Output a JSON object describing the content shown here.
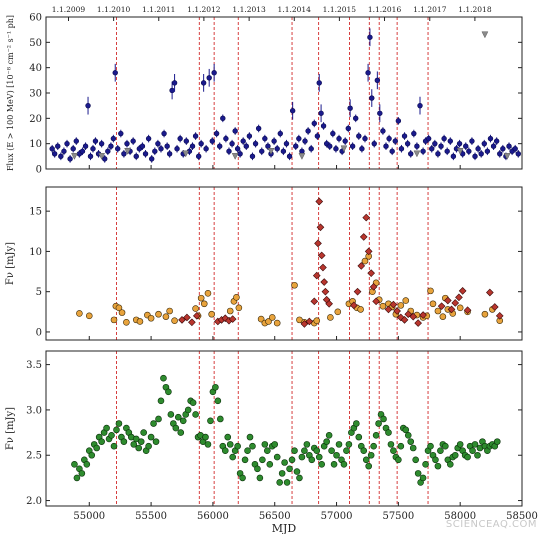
{
  "chart_data": [
    {
      "id": "flux",
      "type": "scatter",
      "ylabel": "Flux (E > 100 MeV) [10⁻⁸ cm⁻² s⁻¹ ph]",
      "xlabel": "",
      "xlim": [
        54650,
        58500
      ],
      "ylim": [
        0,
        60
      ],
      "yticks": [
        0,
        10,
        20,
        30,
        40,
        50,
        60
      ],
      "grid": false,
      "top_axis": {
        "ticks": [
          {
            "mjd": 54832,
            "label": "1.1.2009"
          },
          {
            "mjd": 55197,
            "label": "1.1.2010"
          },
          {
            "mjd": 55562,
            "label": "1.1.2011"
          },
          {
            "mjd": 55927,
            "label": "1.1.2012"
          },
          {
            "mjd": 56293,
            "label": "1.1.2013"
          },
          {
            "mjd": 56658,
            "label": "1.1.2014"
          },
          {
            "mjd": 57023,
            "label": "1.1.2015"
          },
          {
            "mjd": 57388,
            "label": "1.1.2016"
          },
          {
            "mjd": 57754,
            "label": "1.1.2017"
          },
          {
            "mjd": 58119,
            "label": "1.1.2018"
          }
        ]
      },
      "series": [
        {
          "marker": "circle",
          "color": "#1a1a8c",
          "edge": "#0a0a50",
          "x": [
            54700,
            54720,
            54745,
            54770,
            54795,
            54820,
            54845,
            54870,
            54895,
            54920,
            54945,
            54970,
            54990,
            55010,
            55030,
            55050,
            55075,
            55100,
            55125,
            55150,
            55175,
            55195,
            55210,
            55230,
            55255,
            55280,
            55305,
            55330,
            55355,
            55380,
            55405,
            55430,
            55455,
            55480,
            55505,
            55530,
            55555,
            55580,
            55605,
            55630,
            55650,
            55670,
            55690,
            55710,
            55735,
            55760,
            55785,
            55810,
            55835,
            55860,
            55885,
            55905,
            55925,
            55945,
            55970,
            55995,
            56010,
            56030,
            56055,
            56080,
            56105,
            56130,
            56155,
            56180,
            56200,
            56220,
            56245,
            56270,
            56295,
            56320,
            56345,
            56370,
            56395,
            56420,
            56445,
            56470,
            56495,
            56520,
            56545,
            56570,
            56595,
            56620,
            56645,
            56670,
            56695,
            56720,
            56745,
            56770,
            56795,
            56820,
            56845,
            56860,
            56875,
            56895,
            56920,
            56945,
            56970,
            56995,
            57020,
            57045,
            57070,
            57095,
            57110,
            57130,
            57155,
            57180,
            57205,
            57230,
            57255,
            57270,
            57285,
            57305,
            57330,
            57350,
            57375,
            57400,
            57425,
            57450,
            57475,
            57500,
            57525,
            57550,
            57575,
            57600,
            57625,
            57650,
            57675,
            57700,
            57720,
            57745,
            57770,
            57795,
            57820,
            57845,
            57870,
            57895,
            57920,
            57945,
            57970,
            57995,
            58020,
            58045,
            58070,
            58095,
            58120,
            58145,
            58170,
            58195,
            58220,
            58245,
            58270,
            58295,
            58320,
            58345,
            58370,
            58395,
            58420,
            58445,
            58470
          ],
          "y": [
            8,
            6,
            9,
            5,
            7,
            10,
            4,
            8,
            11,
            6,
            7,
            9,
            25,
            5,
            8,
            11,
            6,
            10,
            4,
            7,
            9,
            12,
            38,
            8,
            14,
            6,
            10,
            7,
            11,
            5,
            8,
            9,
            6,
            12,
            4,
            7,
            10,
            8,
            14,
            9,
            6,
            31,
            34,
            8,
            12,
            6,
            11,
            7,
            9,
            13,
            5,
            10,
            34,
            8,
            36,
            11,
            38,
            14,
            9,
            20,
            12,
            7,
            10,
            15,
            8,
            6,
            11,
            9,
            13,
            5,
            10,
            16,
            7,
            12,
            9,
            6,
            11,
            8,
            14,
            7,
            10,
            5,
            23,
            9,
            12,
            7,
            11,
            15,
            8,
            18,
            13,
            34,
            22,
            17,
            10,
            9,
            14,
            8,
            12,
            7,
            11,
            16,
            24,
            9,
            20,
            13,
            8,
            12,
            38,
            52,
            28,
            10,
            35,
            22,
            15,
            9,
            12,
            7,
            11,
            19,
            8,
            13,
            10,
            6,
            14,
            9,
            25,
            7,
            11,
            12,
            8,
            10,
            6,
            9,
            12,
            7,
            11,
            5,
            8,
            10,
            6,
            9,
            7,
            11,
            5,
            8,
            6,
            10,
            7,
            12,
            9,
            11,
            6,
            8,
            5,
            9,
            7,
            8,
            6
          ]
        },
        {
          "marker": "triangle-down",
          "color": "#8a8a8a",
          "edge": "#5a5a5a",
          "x": [
            54880,
            55100,
            55310,
            55780,
            56180,
            56470,
            56720,
            57060,
            57650,
            58000,
            58200,
            58380
          ],
          "y": [
            5,
            5,
            7,
            6,
            5,
            7,
            5,
            8,
            6,
            7,
            53,
            5
          ]
        }
      ]
    },
    {
      "id": "fnu-mm",
      "type": "scatter",
      "ylabel": "Fν [mJy]",
      "xlabel": "",
      "xlim": [
        54650,
        58500
      ],
      "ylim": [
        -1,
        18
      ],
      "yticks": [
        0,
        5,
        10,
        15
      ],
      "grid": false,
      "series": [
        {
          "marker": "circle",
          "color": "#e8a33c",
          "edge": "#3a2a0a",
          "x": [
            54920,
            55000,
            55200,
            55215,
            55240,
            55265,
            55300,
            55380,
            55410,
            55470,
            55500,
            55560,
            55620,
            55650,
            55690,
            55860,
            55880,
            55905,
            55930,
            55960,
            55990,
            56140,
            56170,
            56190,
            56210,
            56390,
            56420,
            56450,
            56480,
            56520,
            56660,
            56700,
            56740,
            56820,
            56840,
            56950,
            57010,
            57100,
            57130,
            57165,
            57195,
            57230,
            57260,
            57290,
            57320,
            57345,
            57375,
            57420,
            57450,
            57480,
            57520,
            57560,
            57600,
            57650,
            57700,
            57730,
            57760,
            57780,
            57820,
            57860,
            57880,
            57900,
            57940,
            58000,
            58060,
            58200,
            58260,
            58320
          ],
          "y": [
            2.3,
            2.0,
            1.5,
            3.2,
            3.0,
            2.4,
            1.2,
            1.5,
            1.3,
            2.1,
            1.7,
            2.2,
            1.9,
            2.6,
            1.4,
            2.9,
            2.0,
            4.2,
            3.5,
            4.8,
            2.2,
            2.6,
            3.8,
            4.3,
            3.0,
            1.6,
            1.1,
            1.3,
            1.8,
            1.1,
            5.8,
            1.5,
            1.2,
            1.1,
            1.4,
            1.8,
            2.5,
            3.5,
            3.8,
            3.0,
            2.8,
            8.8,
            9.4,
            5.0,
            6.1,
            4.0,
            3.2,
            3.5,
            3.1,
            2.2,
            3.3,
            3.9,
            2.6,
            2.1,
            1.8,
            2.0,
            5.1,
            3.5,
            2.6,
            1.9,
            4.2,
            2.8,
            2.3,
            3.0,
            2.5,
            2.2,
            2.8,
            1.4
          ]
        },
        {
          "marker": "diamond",
          "color": "#b8362e",
          "edge": "#3a0a0a",
          "x": [
            55750,
            55790,
            55830,
            55870,
            56040,
            56070,
            56100,
            56130,
            56160,
            56740,
            56780,
            56820,
            56840,
            56850,
            56860,
            56870,
            56880,
            56890,
            56900,
            56910,
            56920,
            56940,
            57140,
            57170,
            57200,
            57220,
            57240,
            57260,
            57280,
            57300,
            57320,
            57420,
            57460,
            57490,
            57520,
            57550,
            57580,
            57620,
            57660,
            57700,
            57850,
            57900,
            57930,
            57960,
            57990,
            58020,
            58060,
            58240,
            58280,
            58320
          ],
          "y": [
            1.5,
            1.8,
            1.2,
            2.0,
            1.3,
            1.5,
            1.7,
            1.4,
            1.6,
            1.0,
            1.3,
            3.8,
            7.0,
            11.0,
            16.2,
            13.0,
            9.5,
            8.0,
            6.2,
            5.0,
            4.0,
            3.5,
            3.3,
            5.0,
            8.2,
            11.8,
            14.2,
            10.0,
            7.3,
            5.6,
            3.8,
            2.8,
            3.4,
            2.6,
            1.8,
            1.5,
            2.2,
            1.9,
            1.1,
            2.1,
            3.2,
            3.9,
            2.8,
            3.6,
            4.3,
            5.1,
            2.7,
            4.9,
            3.1,
            2.0
          ]
        }
      ]
    },
    {
      "id": "fnu-radio",
      "type": "scatter",
      "ylabel": "Fν [mJy]",
      "xlabel": "MJD",
      "xlim": [
        54650,
        58500
      ],
      "ylim": [
        1.94,
        3.65
      ],
      "yticks": [
        2.0,
        2.5,
        3.0,
        3.5
      ],
      "xticks": [
        55000,
        55500,
        56000,
        56500,
        57000,
        57500,
        58000,
        58500
      ],
      "grid": false,
      "series": [
        {
          "marker": "circle",
          "color": "#2e8b2e",
          "edge": "#0a300a",
          "x": [
            54880,
            54900,
            54920,
            54940,
            54960,
            54980,
            55000,
            55020,
            55040,
            55060,
            55080,
            55100,
            55120,
            55140,
            55160,
            55180,
            55200,
            55220,
            55240,
            55260,
            55280,
            55300,
            55320,
            55340,
            55360,
            55380,
            55400,
            55420,
            55440,
            55460,
            55480,
            55500,
            55520,
            55540,
            55560,
            55580,
            55600,
            55620,
            55640,
            55660,
            55680,
            55700,
            55720,
            55740,
            55760,
            55780,
            55800,
            55820,
            55840,
            55860,
            55880,
            55900,
            55920,
            55940,
            55960,
            55980,
            56000,
            56020,
            56040,
            56060,
            56080,
            56100,
            56120,
            56140,
            56160,
            56180,
            56200,
            56220,
            56240,
            56260,
            56280,
            56300,
            56320,
            56340,
            56360,
            56380,
            56400,
            56420,
            56440,
            56460,
            56480,
            56500,
            56520,
            56540,
            56560,
            56580,
            56600,
            56620,
            56640,
            56660,
            56680,
            56700,
            56720,
            56740,
            56760,
            56780,
            56800,
            56820,
            56840,
            56860,
            56880,
            56900,
            56920,
            56940,
            56960,
            56980,
            57000,
            57020,
            57040,
            57060,
            57080,
            57100,
            57120,
            57140,
            57160,
            57180,
            57200,
            57220,
            57240,
            57260,
            57280,
            57300,
            57320,
            57340,
            57360,
            57380,
            57400,
            57420,
            57440,
            57460,
            57480,
            57500,
            57520,
            57540,
            57560,
            57580,
            57600,
            57620,
            57640,
            57660,
            57680,
            57700,
            57720,
            57740,
            57760,
            57780,
            57800,
            57820,
            57840,
            57860,
            57880,
            57900,
            57920,
            57940,
            57960,
            57980,
            58000,
            58020,
            58040,
            58060,
            58080,
            58100,
            58120,
            58140,
            58160,
            58180,
            58200,
            58220,
            58240,
            58260,
            58280,
            58300
          ],
          "y": [
            2.4,
            2.25,
            2.35,
            2.3,
            2.45,
            2.4,
            2.55,
            2.5,
            2.62,
            2.58,
            2.7,
            2.65,
            2.75,
            2.8,
            2.68,
            2.72,
            2.6,
            2.78,
            2.85,
            2.7,
            2.65,
            2.8,
            2.75,
            2.7,
            2.62,
            2.68,
            2.58,
            2.65,
            2.75,
            2.55,
            2.6,
            2.7,
            2.85,
            2.65,
            2.9,
            3.1,
            3.35,
            3.25,
            3.2,
            2.95,
            2.85,
            2.8,
            2.92,
            2.75,
            2.88,
            2.95,
            3.0,
            3.1,
            3.08,
            2.95,
            2.7,
            2.72,
            2.65,
            2.7,
            2.62,
            2.88,
            3.2,
            3.25,
            3.1,
            2.9,
            2.6,
            2.55,
            2.7,
            2.62,
            2.48,
            2.55,
            2.6,
            2.3,
            2.25,
            2.45,
            2.55,
            2.7,
            2.6,
            2.4,
            2.35,
            2.25,
            2.45,
            2.62,
            2.55,
            2.4,
            2.6,
            2.62,
            2.48,
            2.2,
            2.3,
            2.42,
            2.2,
            2.35,
            2.45,
            2.55,
            2.32,
            2.25,
            2.48,
            2.55,
            2.62,
            2.5,
            2.45,
            2.58,
            2.55,
            2.48,
            2.4,
            2.6,
            2.65,
            2.72,
            2.55,
            2.4,
            2.5,
            2.62,
            2.45,
            2.4,
            2.55,
            2.62,
            2.75,
            2.8,
            2.85,
            2.7,
            2.6,
            2.55,
            2.45,
            2.38,
            2.5,
            2.6,
            2.72,
            2.85,
            2.95,
            2.9,
            2.8,
            2.75,
            2.62,
            2.55,
            2.48,
            2.45,
            2.6,
            2.8,
            2.78,
            2.72,
            2.65,
            2.58,
            2.45,
            2.3,
            2.2,
            2.25,
            2.4,
            2.55,
            2.6,
            2.5,
            2.45,
            2.38,
            2.55,
            2.62,
            2.6,
            2.45,
            2.4,
            2.48,
            2.5,
            2.58,
            2.62,
            2.55,
            2.5,
            2.48,
            2.6,
            2.55,
            2.62,
            2.5,
            2.58,
            2.65,
            2.6,
            2.55,
            2.6,
            2.62,
            2.6,
            2.65
          ]
        }
      ]
    }
  ],
  "flare_lines": [
    55220,
    55890,
    56010,
    56205,
    56640,
    56855,
    57105,
    57265,
    57345,
    57490,
    57740
  ],
  "colors": {
    "flare_line": "#d22b2b",
    "axis": "#222222"
  },
  "watermark": "SCIENCEAQ.COM"
}
